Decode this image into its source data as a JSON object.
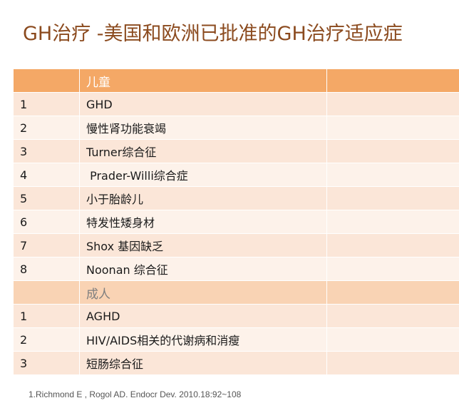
{
  "title": "GH治疗 -美国和欧洲已批准的GH治疗适应症",
  "table": {
    "children_header": "儿童",
    "children_rows": [
      {
        "num": "1",
        "text": "GHD"
      },
      {
        "num": "2",
        "text": "慢性肾功能衰竭"
      },
      {
        "num": "3",
        "text": "Turner综合征"
      },
      {
        "num": "4",
        "text": " Prader-Willi综合症"
      },
      {
        "num": "5",
        "text": "小于胎龄儿"
      },
      {
        "num": "6",
        "text": "特发性矮身材"
      },
      {
        "num": "7",
        "text": "Shox 基因缺乏"
      },
      {
        "num": "8",
        "text": "Noonan 综合征"
      }
    ],
    "adult_header": "成人",
    "adult_rows": [
      {
        "num": "1",
        "text": "AGHD"
      },
      {
        "num": "2",
        "text": "HIV/AIDS相关的代谢病和消瘦"
      },
      {
        "num": "3",
        "text": "短肠综合征"
      }
    ]
  },
  "footnote": "1.Richmond E , Rogol AD. Endocr Dev. 2010.18:92~108"
}
